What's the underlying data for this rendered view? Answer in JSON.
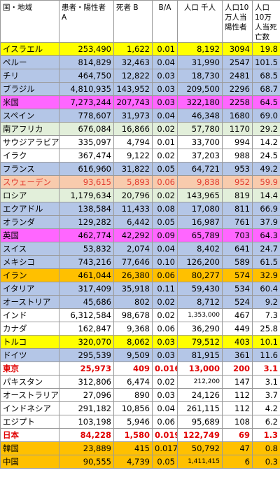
{
  "headers": {
    "country": "国・地域",
    "cases": "患者・陽性者 A",
    "deaths": "死者 B",
    "ratio": "B/A",
    "population": "人口 千人",
    "cases_per_100k": "人口10万人当陽性者",
    "deaths_per_100k": "人口10万人当死亡数"
  },
  "colors": {
    "yellow": "#ffff00",
    "blue": "#b4c6e7",
    "magenta": "#ff66ff",
    "green": "#e2efda",
    "white": "#ffffff",
    "peach": "#f8cbad",
    "orange": "#ffc000",
    "red_text": "#e00000"
  },
  "rows": [
    {
      "name": "イスラエル",
      "cases": "253,490",
      "deaths": "1,622",
      "ratio": "0.01",
      "population": "8,192",
      "cases_per_100k": "3094",
      "deaths_per_100k": "19.8",
      "bg": "yellow"
    },
    {
      "name": "ペルー",
      "cases": "814,829",
      "deaths": "32,463",
      "ratio": "0.04",
      "population": "31,990",
      "cases_per_100k": "2547",
      "deaths_per_100k": "101.5",
      "bg": "blue"
    },
    {
      "name": "チリ",
      "cases": "464,750",
      "deaths": "12,822",
      "ratio": "0.03",
      "population": "18,730",
      "cases_per_100k": "2481",
      "deaths_per_100k": "68.5",
      "bg": "blue"
    },
    {
      "name": "ブラジル",
      "cases": "4,810,935",
      "deaths": "143,952",
      "ratio": "0.03",
      "population": "209,500",
      "cases_per_100k": "2296",
      "deaths_per_100k": "68.7",
      "bg": "blue"
    },
    {
      "name": "米国",
      "cases": "7,273,244",
      "deaths": "207,743",
      "ratio": "0.03",
      "population": "322,180",
      "cases_per_100k": "2258",
      "deaths_per_100k": "64.5",
      "bg": "magenta"
    },
    {
      "name": "スペイン",
      "cases": "778,607",
      "deaths": "31,973",
      "ratio": "0.04",
      "population": "46,348",
      "cases_per_100k": "1680",
      "deaths_per_100k": "69.0",
      "bg": "blue"
    },
    {
      "name": "南アフリカ",
      "cases": "676,084",
      "deaths": "16,866",
      "ratio": "0.02",
      "population": "57,780",
      "cases_per_100k": "1170",
      "deaths_per_100k": "29.2",
      "bg": "green"
    },
    {
      "name": "サウジアラビア",
      "cases": "335,097",
      "deaths": "4,794",
      "ratio": "0.01",
      "population": "33,700",
      "cases_per_100k": "994",
      "deaths_per_100k": "14.2",
      "bg": "white"
    },
    {
      "name": "イラク",
      "cases": "367,474",
      "deaths": "9,122",
      "ratio": "0.02",
      "population": "37,203",
      "cases_per_100k": "988",
      "deaths_per_100k": "24.5",
      "bg": "white"
    },
    {
      "name": "フランス",
      "cases": "616,960",
      "deaths": "31,822",
      "ratio": "0.05",
      "population": "64,721",
      "cases_per_100k": "953",
      "deaths_per_100k": "49.2",
      "bg": "blue"
    },
    {
      "name": "スウェーデン",
      "cases": "93,615",
      "deaths": "5,893",
      "ratio": "0.06",
      "population": "9,838",
      "cases_per_100k": "952",
      "deaths_per_100k": "59.9",
      "bg": "peach",
      "style": "red-light"
    },
    {
      "name": "ロシア",
      "cases": "1,179,634",
      "deaths": "20,796",
      "ratio": "0.02",
      "population": "143,965",
      "cases_per_100k": "819",
      "deaths_per_100k": "14.4",
      "bg": "green"
    },
    {
      "name": "エクアドル",
      "cases": "138,584",
      "deaths": "11,433",
      "ratio": "0.08",
      "population": "17,080",
      "cases_per_100k": "811",
      "deaths_per_100k": "66.9",
      "bg": "blue"
    },
    {
      "name": "オランダ",
      "cases": "129,282",
      "deaths": "6,442",
      "ratio": "0.05",
      "population": "16,987",
      "cases_per_100k": "761",
      "deaths_per_100k": "37.9",
      "bg": "blue"
    },
    {
      "name": "英国",
      "cases": "462,774",
      "deaths": "42,292",
      "ratio": "0.09",
      "population": "65,789",
      "cases_per_100k": "703",
      "deaths_per_100k": "64.3",
      "bg": "magenta"
    },
    {
      "name": "スイス",
      "cases": "53,832",
      "deaths": "2,074",
      "ratio": "0.04",
      "population": "8,402",
      "cases_per_100k": "641",
      "deaths_per_100k": "24.7",
      "bg": "blue"
    },
    {
      "name": "メキシコ",
      "cases": "743,216",
      "deaths": "77,646",
      "ratio": "0.10",
      "population": "126,200",
      "cases_per_100k": "589",
      "deaths_per_100k": "61.5",
      "bg": "blue"
    },
    {
      "name": "イラン",
      "cases": "461,044",
      "deaths": "26,380",
      "ratio": "0.06",
      "population": "80,277",
      "cases_per_100k": "574",
      "deaths_per_100k": "32.9",
      "bg": "orange"
    },
    {
      "name": "イタリア",
      "cases": "317,409",
      "deaths": "35,918",
      "ratio": "0.11",
      "population": "59,430",
      "cases_per_100k": "534",
      "deaths_per_100k": "60.4",
      "bg": "blue"
    },
    {
      "name": "オーストリア",
      "cases": "45,686",
      "deaths": "802",
      "ratio": "0.02",
      "population": "8,712",
      "cases_per_100k": "524",
      "deaths_per_100k": "9.2",
      "bg": "blue"
    },
    {
      "name": "インド",
      "cases": "6,312,584",
      "deaths": "98,678",
      "ratio": "0.02",
      "population": "1,353,000",
      "cases_per_100k": "467",
      "deaths_per_100k": "7.3",
      "bg": "white",
      "small_population": true
    },
    {
      "name": "カナダ",
      "cases": "162,847",
      "deaths": "9,368",
      "ratio": "0.06",
      "population": "36,290",
      "cases_per_100k": "449",
      "deaths_per_100k": "25.8",
      "bg": "white"
    },
    {
      "name": "トルコ",
      "cases": "320,070",
      "deaths": "8,062",
      "ratio": "0.03",
      "population": "79,512",
      "cases_per_100k": "403",
      "deaths_per_100k": "10.1",
      "bg": "yellow"
    },
    {
      "name": "ドイツ",
      "cases": "295,539",
      "deaths": "9,509",
      "ratio": "0.03",
      "population": "81,915",
      "cases_per_100k": "361",
      "deaths_per_100k": "11.6",
      "bg": "blue"
    },
    {
      "name": "東京",
      "cases": "25,973",
      "deaths": "409",
      "ratio": "0.016",
      "population": "13,000",
      "cases_per_100k": "200",
      "deaths_per_100k": "3.1",
      "bg": "white",
      "style": "red-bold"
    },
    {
      "name": "パキスタン",
      "cases": "312,806",
      "deaths": "6,474",
      "ratio": "0.02",
      "population": "212,200",
      "cases_per_100k": "147",
      "deaths_per_100k": "3.1",
      "bg": "white",
      "small_population": true
    },
    {
      "name": "オーストラリア",
      "cases": "27,096",
      "deaths": "890",
      "ratio": "0.03",
      "population": "24,126",
      "cases_per_100k": "112",
      "deaths_per_100k": "3.7",
      "bg": "white"
    },
    {
      "name": "インドネシア",
      "cases": "291,182",
      "deaths": "10,856",
      "ratio": "0.04",
      "population": "261,115",
      "cases_per_100k": "112",
      "deaths_per_100k": "4.2",
      "bg": "white"
    },
    {
      "name": "エジプト",
      "cases": "103,198",
      "deaths": "5,946",
      "ratio": "0.06",
      "population": "95,689",
      "cases_per_100k": "108",
      "deaths_per_100k": "6.2",
      "bg": "white"
    },
    {
      "name": "日本",
      "cases": "84,228",
      "deaths": "1,580",
      "ratio": "0.019",
      "population": "122,749",
      "cases_per_100k": "69",
      "deaths_per_100k": "1.3",
      "bg": "white",
      "style": "red-bold"
    },
    {
      "name": "韓国",
      "cases": "23,889",
      "deaths": "415",
      "ratio": "0.017",
      "population": "50,792",
      "cases_per_100k": "47",
      "deaths_per_100k": "0.8",
      "bg": "orange"
    },
    {
      "name": "中国",
      "cases": "90,555",
      "deaths": "4,739",
      "ratio": "0.05",
      "population": "1,411,415",
      "cases_per_100k": "6",
      "deaths_per_100k": "0.3",
      "bg": "orange",
      "small_population": true
    }
  ]
}
